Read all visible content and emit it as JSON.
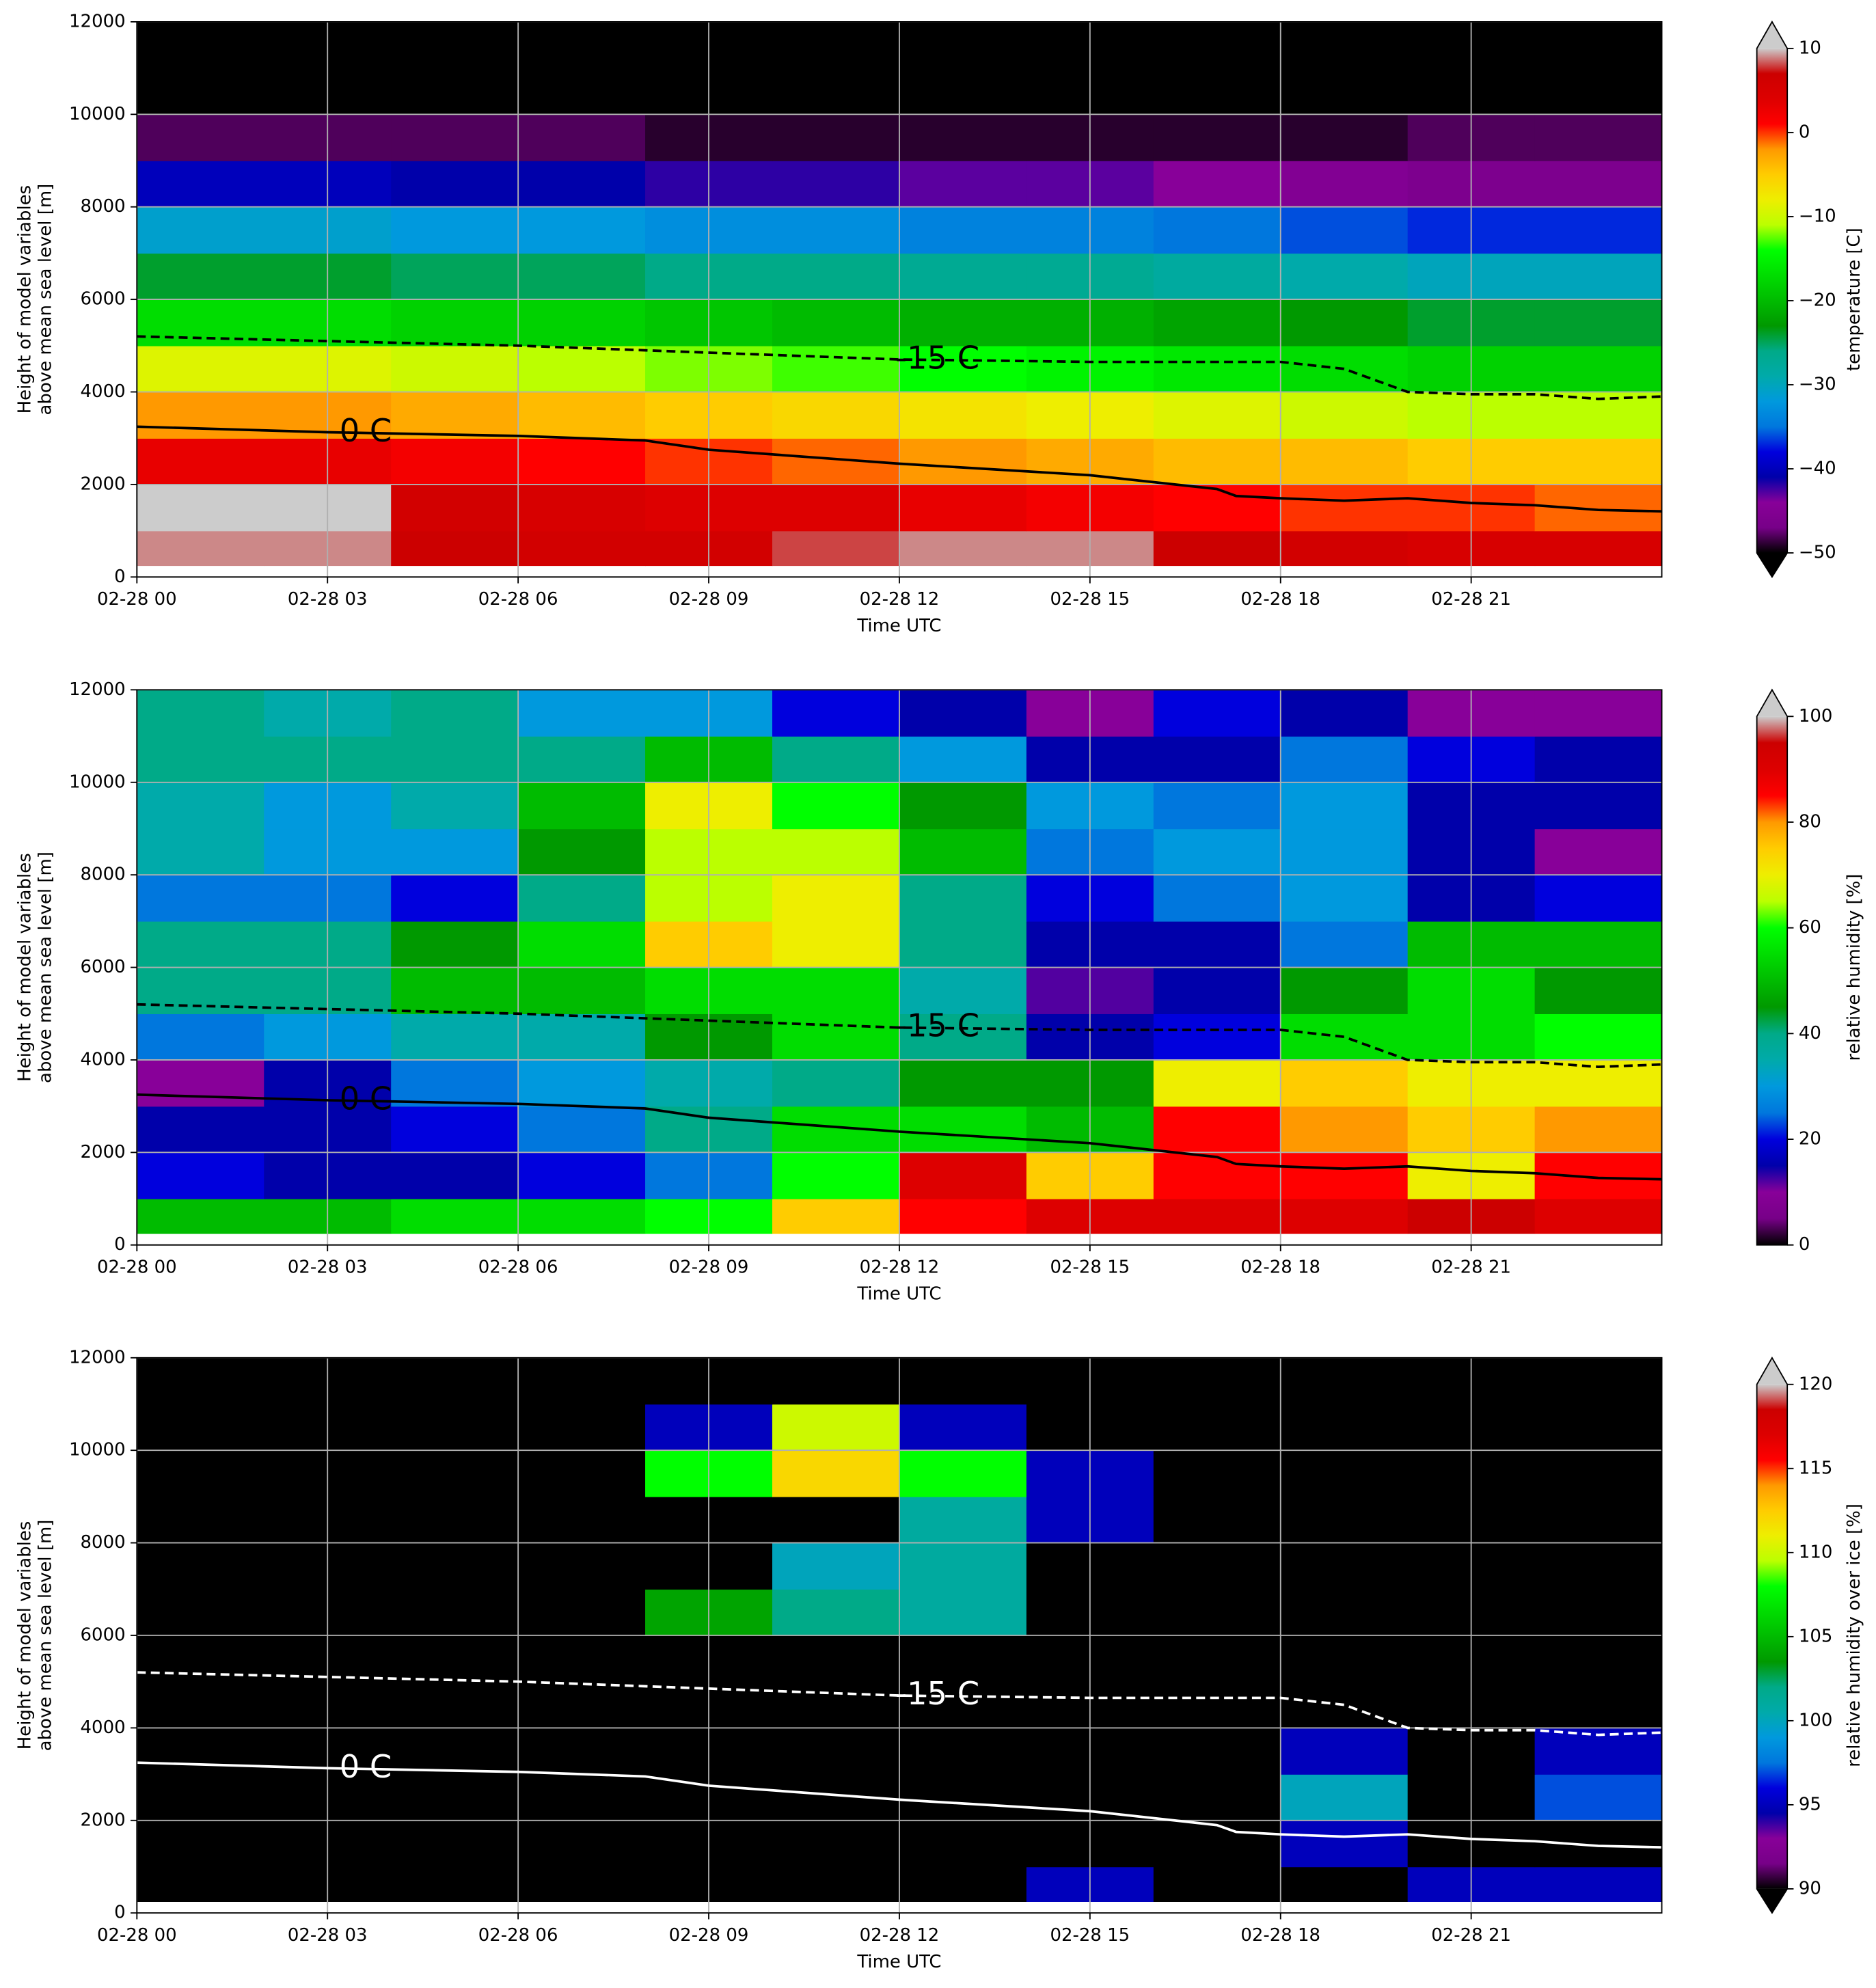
{
  "chart_data": [
    {
      "type": "heatmap",
      "xlabel": "Time UTC",
      "ylabel": [
        "Height of model variables",
        "above mean sea level [m]"
      ],
      "xlim": [
        0,
        24
      ],
      "ylim": [
        0,
        12000
      ],
      "xticks": [
        {
          "value": 0,
          "label": "02-28 00"
        },
        {
          "value": 3,
          "label": "02-28 03"
        },
        {
          "value": 6,
          "label": "02-28 06"
        },
        {
          "value": 9,
          "label": "02-28 09"
        },
        {
          "value": 12,
          "label": "02-28 12"
        },
        {
          "value": 15,
          "label": "02-28 15"
        },
        {
          "value": 18,
          "label": "02-28 18"
        },
        {
          "value": 21,
          "label": "02-28 21"
        }
      ],
      "yticks": [
        0,
        2000,
        4000,
        6000,
        8000,
        10000,
        12000
      ],
      "grid": true,
      "colormap": "nipy_spectral",
      "colorbar": {
        "label": "temperature [C]",
        "lim": [
          -50,
          10
        ],
        "extend": "both",
        "ticks": [
          10,
          0,
          {
            "value": -10,
            "label": "−10"
          },
          {
            "value": -20,
            "label": "−20"
          },
          {
            "value": -30,
            "label": "−30"
          },
          {
            "value": -40,
            "label": "−40"
          },
          {
            "value": -50,
            "label": "−50"
          }
        ]
      },
      "x_edges": [
        0,
        2,
        4,
        6,
        8,
        10,
        12,
        14,
        16,
        18,
        20,
        22,
        24
      ],
      "y_edges": [
        250,
        1000,
        2000,
        3000,
        4000,
        5000,
        6000,
        7000,
        8000,
        9000,
        10000,
        11000,
        12000
      ],
      "values": [
        [
          9,
          9,
          7,
          6,
          6,
          8,
          9,
          9,
          7,
          6,
          5,
          5
        ],
        [
          11,
          10,
          6,
          5,
          4,
          4,
          3,
          2,
          1,
          0,
          0,
          -1
        ],
        [
          3,
          3,
          2,
          1,
          0,
          -1,
          -2,
          -3,
          -4,
          -4,
          -5,
          -5
        ],
        [
          -2,
          -2,
          -3,
          -4,
          -5,
          -6,
          -7,
          -8,
          -9,
          -10,
          -11,
          -11
        ],
        [
          -9,
          -9,
          -10,
          -11,
          -12,
          -13,
          -14,
          -15,
          -16,
          -17,
          -18,
          -18
        ],
        [
          -17,
          -17,
          -18,
          -18,
          -19,
          -20,
          -21,
          -21,
          -22,
          -23,
          -24,
          -24
        ],
        [
          -24,
          -24,
          -25,
          -25,
          -26,
          -26,
          -27,
          -27,
          -28,
          -29,
          -30,
          -30
        ],
        [
          -31,
          -31,
          -32,
          -32,
          -33,
          -33,
          -34,
          -34,
          -35,
          -36,
          -37,
          -37
        ],
        [
          -40,
          -40,
          -41,
          -41,
          -42,
          -42,
          -43,
          -43,
          -44,
          -45,
          -46,
          -46
        ],
        [
          -48,
          -48,
          -48,
          -48,
          -49,
          -49,
          -49,
          -49,
          -49,
          -49,
          -48,
          -48
        ],
        [
          -55,
          -55,
          -55,
          -55,
          -55,
          -55,
          -55,
          -55,
          -55,
          -55,
          -55,
          -55
        ],
        [
          -55,
          -55,
          -55,
          -55,
          -55,
          -55,
          -55,
          -55,
          -55,
          -55,
          -55,
          -55
        ]
      ],
      "contour_color": "#000000",
      "contours": [
        {
          "label": "0 C",
          "dashed": false,
          "x": [
            0,
            3,
            6,
            8,
            9,
            12,
            15,
            17,
            17.3,
            18,
            19,
            20,
            21,
            22,
            23,
            24
          ],
          "y": [
            3250,
            3130,
            3050,
            2950,
            2750,
            2450,
            2200,
            1900,
            1750,
            1700,
            1650,
            1700,
            1600,
            1550,
            1450,
            1420
          ]
        },
        {
          "label": "-15 C",
          "dashed": true,
          "x": [
            0,
            3,
            6,
            9,
            12,
            15,
            18,
            19,
            20,
            21,
            22,
            23,
            24
          ],
          "y": [
            5200,
            5100,
            5000,
            4850,
            4700,
            4650,
            4650,
            4500,
            4000,
            3950,
            3950,
            3850,
            3900
          ]
        }
      ]
    },
    {
      "type": "heatmap",
      "xlabel": "Time UTC",
      "ylabel": [
        "Height of model variables",
        "above mean sea level [m]"
      ],
      "xlim": [
        0,
        24
      ],
      "ylim": [
        0,
        12000
      ],
      "xticks": [
        {
          "value": 0,
          "label": "02-28 00"
        },
        {
          "value": 3,
          "label": "02-28 03"
        },
        {
          "value": 6,
          "label": "02-28 06"
        },
        {
          "value": 9,
          "label": "02-28 09"
        },
        {
          "value": 12,
          "label": "02-28 12"
        },
        {
          "value": 15,
          "label": "02-28 15"
        },
        {
          "value": 18,
          "label": "02-28 18"
        },
        {
          "value": 21,
          "label": "02-28 21"
        }
      ],
      "yticks": [
        0,
        2000,
        4000,
        6000,
        8000,
        10000,
        12000
      ],
      "grid": true,
      "colormap": "nipy_spectral",
      "colorbar": {
        "label": "relative humidity [%]",
        "lim": [
          0,
          100
        ],
        "extend": "max",
        "ticks": [
          100,
          80,
          60,
          40,
          20,
          0
        ]
      },
      "x_edges": [
        0,
        2,
        4,
        6,
        8,
        10,
        12,
        14,
        16,
        18,
        20,
        22,
        24
      ],
      "y_edges": [
        250,
        1000,
        2000,
        3000,
        4000,
        5000,
        6000,
        7000,
        8000,
        9000,
        10000,
        11000,
        12000
      ],
      "values": [
        [
          50,
          50,
          55,
          55,
          60,
          75,
          85,
          90,
          90,
          90,
          95,
          90
        ],
        [
          20,
          15,
          15,
          20,
          25,
          60,
          90,
          75,
          85,
          85,
          70,
          85
        ],
        [
          15,
          15,
          20,
          25,
          40,
          55,
          55,
          50,
          85,
          80,
          75,
          80
        ],
        [
          10,
          15,
          25,
          30,
          35,
          40,
          45,
          45,
          70,
          75,
          70,
          70
        ],
        [
          25,
          30,
          35,
          35,
          45,
          55,
          40,
          15,
          20,
          55,
          55,
          60
        ],
        [
          40,
          40,
          50,
          50,
          55,
          55,
          35,
          12,
          15,
          45,
          55,
          45
        ],
        [
          40,
          40,
          45,
          55,
          75,
          70,
          40,
          15,
          15,
          25,
          50,
          50
        ],
        [
          25,
          25,
          20,
          40,
          65,
          70,
          40,
          20,
          25,
          30,
          15,
          20
        ],
        [
          35,
          30,
          30,
          45,
          65,
          65,
          50,
          25,
          30,
          30,
          15,
          10
        ],
        [
          35,
          30,
          35,
          50,
          70,
          60,
          45,
          30,
          25,
          30,
          15,
          15
        ],
        [
          40,
          40,
          40,
          40,
          50,
          40,
          30,
          15,
          15,
          25,
          20,
          15
        ],
        [
          40,
          35,
          40,
          30,
          30,
          20,
          15,
          10,
          20,
          15,
          10,
          10
        ]
      ],
      "contour_color": "#000000",
      "contours": [
        {
          "label": "0 C",
          "dashed": false,
          "x": [
            0,
            3,
            6,
            8,
            9,
            12,
            15,
            17,
            17.3,
            18,
            19,
            20,
            21,
            22,
            23,
            24
          ],
          "y": [
            3250,
            3130,
            3050,
            2950,
            2750,
            2450,
            2200,
            1900,
            1750,
            1700,
            1650,
            1700,
            1600,
            1550,
            1450,
            1420
          ]
        },
        {
          "label": "-15 C",
          "dashed": true,
          "x": [
            0,
            3,
            6,
            9,
            12,
            15,
            18,
            19,
            20,
            21,
            22,
            23,
            24
          ],
          "y": [
            5200,
            5100,
            5000,
            4850,
            4700,
            4650,
            4650,
            4500,
            4000,
            3950,
            3950,
            3850,
            3900
          ]
        }
      ]
    },
    {
      "type": "heatmap",
      "xlabel": "Time UTC",
      "ylabel": [
        "Height of model variables",
        "above mean sea level [m]"
      ],
      "xlim": [
        0,
        24
      ],
      "ylim": [
        0,
        12000
      ],
      "xticks": [
        {
          "value": 0,
          "label": "02-28 00"
        },
        {
          "value": 3,
          "label": "02-28 03"
        },
        {
          "value": 6,
          "label": "02-28 06"
        },
        {
          "value": 9,
          "label": "02-28 09"
        },
        {
          "value": 12,
          "label": "02-28 12"
        },
        {
          "value": 15,
          "label": "02-28 15"
        },
        {
          "value": 18,
          "label": "02-28 18"
        },
        {
          "value": 21,
          "label": "02-28 21"
        }
      ],
      "yticks": [
        0,
        2000,
        4000,
        6000,
        8000,
        10000,
        12000
      ],
      "grid": true,
      "colormap": "nipy_spectral",
      "colorbar": {
        "label": "relative humidity over ice [%]",
        "lim": [
          90,
          120
        ],
        "extend": "both",
        "ticks": [
          120,
          115,
          110,
          105,
          100,
          95,
          90
        ]
      },
      "x_edges": [
        0,
        2,
        4,
        6,
        8,
        10,
        12,
        14,
        16,
        18,
        20,
        22,
        24
      ],
      "y_edges": [
        250,
        1000,
        2000,
        3000,
        4000,
        5000,
        6000,
        7000,
        8000,
        9000,
        10000,
        11000,
        12000
      ],
      "values": [
        [
          85,
          85,
          85,
          85,
          85,
          85,
          85,
          95,
          85,
          85,
          95,
          95
        ],
        [
          85,
          85,
          85,
          85,
          85,
          85,
          85,
          85,
          85,
          95,
          85,
          85
        ],
        [
          85,
          85,
          85,
          85,
          85,
          85,
          85,
          85,
          85,
          100,
          85,
          97
        ],
        [
          85,
          85,
          85,
          85,
          85,
          85,
          85,
          85,
          85,
          95,
          85,
          95
        ],
        [
          85,
          85,
          85,
          85,
          85,
          85,
          85,
          85,
          85,
          85,
          85,
          85
        ],
        [
          85,
          85,
          85,
          85,
          85,
          85,
          85,
          85,
          85,
          85,
          85,
          85
        ],
        [
          85,
          85,
          85,
          85,
          104,
          102,
          101,
          85,
          85,
          85,
          85,
          85
        ],
        [
          85,
          85,
          85,
          85,
          85,
          100,
          101,
          85,
          85,
          85,
          85,
          85
        ],
        [
          85,
          85,
          85,
          85,
          85,
          85,
          101,
          95,
          85,
          85,
          85,
          85
        ],
        [
          85,
          85,
          85,
          85,
          108,
          112,
          108,
          95,
          85,
          85,
          85,
          85
        ],
        [
          85,
          85,
          85,
          85,
          95,
          110,
          95,
          85,
          85,
          85,
          85,
          85
        ],
        [
          85,
          85,
          85,
          85,
          85,
          85,
          85,
          85,
          85,
          85,
          85,
          85
        ]
      ],
      "contour_color": "#ffffff",
      "contours": [
        {
          "label": "0 C",
          "dashed": false,
          "x": [
            0,
            3,
            6,
            8,
            9,
            12,
            15,
            17,
            17.3,
            18,
            19,
            20,
            21,
            22,
            23,
            24
          ],
          "y": [
            3250,
            3130,
            3050,
            2950,
            2750,
            2450,
            2200,
            1900,
            1750,
            1700,
            1650,
            1700,
            1600,
            1550,
            1450,
            1420
          ]
        },
        {
          "label": "-15 C",
          "dashed": true,
          "x": [
            0,
            3,
            6,
            9,
            12,
            15,
            18,
            19,
            20,
            21,
            22,
            23,
            24
          ],
          "y": [
            5200,
            5100,
            5000,
            4850,
            4700,
            4650,
            4650,
            4500,
            4000,
            3950,
            3950,
            3850,
            3900
          ]
        }
      ]
    }
  ]
}
